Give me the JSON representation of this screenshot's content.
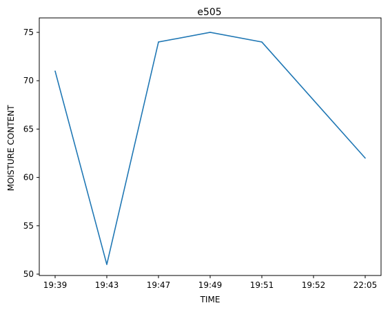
{
  "chart_data": {
    "type": "line",
    "title": "e505",
    "xlabel": "TIME",
    "ylabel": "MOISTURE CONTENT",
    "categories": [
      "19:39",
      "19:43",
      "19:47",
      "19:49",
      "19:51",
      "19:52",
      "22:05"
    ],
    "series": [
      {
        "values": [
          71,
          51,
          74,
          75,
          74,
          68,
          62
        ]
      }
    ],
    "y_ticks": [
      50,
      55,
      60,
      65,
      70,
      75
    ],
    "ylim": [
      50,
      76
    ],
    "grid": false,
    "colors": {
      "line": "#1f77b4",
      "axes": "#000000"
    }
  }
}
